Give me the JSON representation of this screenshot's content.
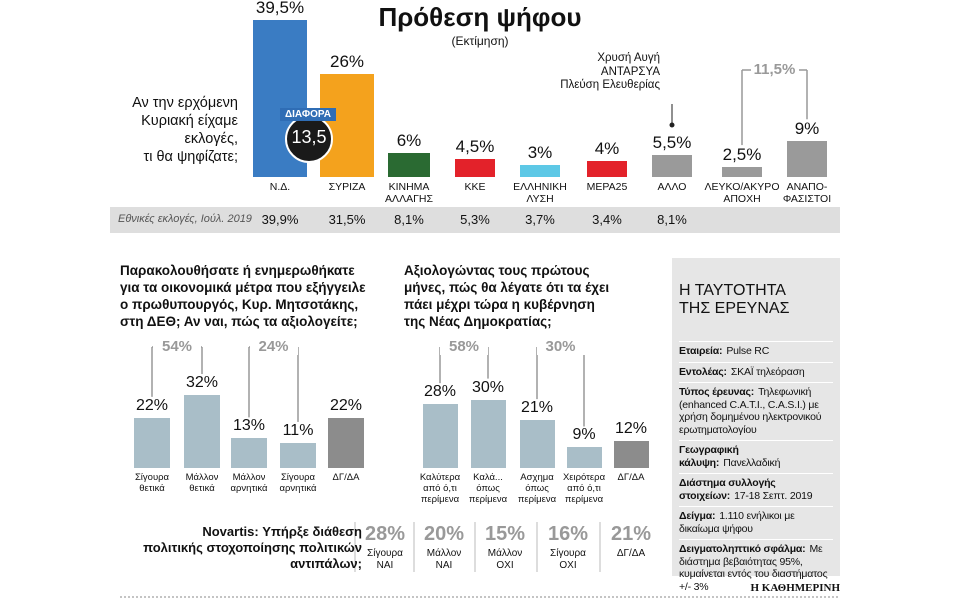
{
  "chart_data": [
    {
      "type": "bar",
      "title": "Πρόθεση ψήφου",
      "subtitle": "(Εκτίμηση)",
      "question": "Αν την ερχόμενη\nΚυριακή είχαμε\nεκλογές,\nτι θα ψηφίζατε;",
      "categories": [
        "Ν.Δ.",
        "ΣΥΡΙΖΑ",
        "ΚΙΝΗΜΑ\nΑΛΛΑΓΗΣ",
        "ΚΚΕ",
        "ΕΛΛΗΝΙΚΗ\nΛΥΣΗ",
        "ΜΕΡΑ25",
        "ΑΛΛΟ",
        "ΛΕΥΚΟ/ΑΚΥΡΟ\nΑΠΟΧΗ",
        "ΑΝΑΠΟ-\nΦΑΣΙΣΤΟΙ"
      ],
      "values": [
        39.5,
        26,
        6,
        4.5,
        3,
        4,
        5.5,
        2.5,
        9
      ],
      "value_labels": [
        "39,5%",
        "26%",
        "6%",
        "4,5%",
        "3%",
        "4%",
        "5,5%",
        "2,5%",
        "9%"
      ],
      "colors": [
        "#3a7cc3",
        "#f4a21d",
        "#2a6a32",
        "#e3222a",
        "#5dc8e6",
        "#e3222a",
        "#9a9a9a",
        "#9a9a9a",
        "#9a9a9a"
      ],
      "difference": {
        "label": "ΔΙΑΦΟΡΑ",
        "value": 13.5,
        "value_label": "13,5"
      },
      "note": "Χρυσή Αυγή\nΑΝΤΑΡΣΥΑ\nΠλεύση Ελευθερίας",
      "groups": [
        {
          "value": 11.5,
          "value_label": "11,5%"
        }
      ],
      "previous": {
        "label": "Εθνικές εκλογές, Ιούλ. 2019",
        "values": [
          39.9,
          31.5,
          8.1,
          5.3,
          3.7,
          3.4,
          8.1
        ],
        "value_labels": [
          "39,9%",
          "31,5%",
          "8,1%",
          "5,3%",
          "3,7%",
          "3,4%",
          "8,1%"
        ]
      }
    },
    {
      "type": "bar",
      "title": "Παρακολουθήσατε ή ενημερωθήκατε\nγια τα οικονομικά μέτρα που εξήγγειλε\nο πρωθυπουργός, Κυρ. Μητσοτάκης,\nστη ΔΕΘ; Αν ναι, πώς τα αξιολογείτε;",
      "categories": [
        "Σίγουρα\nθετικά",
        "Μάλλον\nθετικά",
        "Μάλλον\nαρνητικά",
        "Σίγουρα\nαρνητικά",
        "ΔΓ/ΔΑ"
      ],
      "values": [
        22,
        32,
        13,
        11,
        22
      ],
      "value_labels": [
        "22%",
        "32%",
        "13%",
        "11%",
        "22%"
      ],
      "colors": [
        "#a9bec8",
        "#a9bec8",
        "#a9bec8",
        "#a9bec8",
        "#8c8c8c"
      ],
      "groups": [
        {
          "value": 54,
          "value_label": "54%"
        },
        {
          "value": 24,
          "value_label": "24%"
        }
      ]
    },
    {
      "type": "bar",
      "title": "Αξιολογώντας τους πρώτους\nμήνες, πώς θα λέγατε ότι τα έχει\nπάει μέχρι τώρα η κυβέρνηση\nτης Νέας Δημοκρατίας;",
      "categories": [
        "Καλύτερα\nαπό ό,τι\nπερίμενα",
        "Καλά...\nόπως\nπερίμενα",
        "Ασχημα\nόπως\nπερίμενα",
        "Χειρότερα\nαπό ό,τι\nπερίμενα",
        "ΔΓ/ΔΑ"
      ],
      "values": [
        28,
        30,
        21,
        9,
        12
      ],
      "value_labels": [
        "28%",
        "30%",
        "21%",
        "9%",
        "12%"
      ],
      "colors": [
        "#a9bec8",
        "#a9bec8",
        "#a9bec8",
        "#a9bec8",
        "#8c8c8c"
      ],
      "groups": [
        {
          "value": 58,
          "value_label": "58%"
        },
        {
          "value": 30,
          "value_label": "30%"
        }
      ]
    },
    {
      "type": "table",
      "title": "Novartis: Υπήρξε διάθεση\nπολιτικής στοχοποίησης πολιτικών\nαντιπάλων;",
      "categories": [
        "Σίγουρα\nΝΑΙ",
        "Μάλλον\nΝΑΙ",
        "Μάλλον\nΟΧΙ",
        "Σίγουρα\nΟΧΙ",
        "ΔΓ/ΔΑ"
      ],
      "values": [
        28,
        20,
        15,
        16,
        21
      ],
      "value_labels": [
        "28%",
        "20%",
        "15%",
        "16%",
        "21%"
      ]
    }
  ],
  "survey_info": {
    "title": "Η ΤΑΥΤΟΤΗΤΑ\nΤΗΣ ΕΡΕΥΝΑΣ",
    "items": [
      {
        "label": "Εταιρεία:",
        "value": "Pulse RC"
      },
      {
        "label": "Εντολέας:",
        "value": "ΣΚΑΪ τηλεόραση"
      },
      {
        "label": "Τύπος έρευνας:",
        "value": "Τηλεφωνική (enhanced C.A.T.I., C.A.S.I.) με χρήση δομημένου ηλεκτρονικού ερωτηματολογίου"
      },
      {
        "label": "Γεωγραφική κάλυψη:",
        "value": "Πανελλαδική"
      },
      {
        "label": "Διάστημα συλλογής στοιχείων:",
        "value": "17-18 Σεπτ. 2019"
      },
      {
        "label": "Δείγμα:",
        "value": "1.110 ενήλικοι με δικαίωμα ψήφου"
      },
      {
        "label": "Δειγματοληπτικό σφάλμα:",
        "value": "Με διάστημα βεβαιότητας 95%, κυμαίνεται εντός του διαστήματος +/- 3%"
      }
    ]
  },
  "footer": "Η ΚΑΘΗΜΕΡΙΝΗ"
}
